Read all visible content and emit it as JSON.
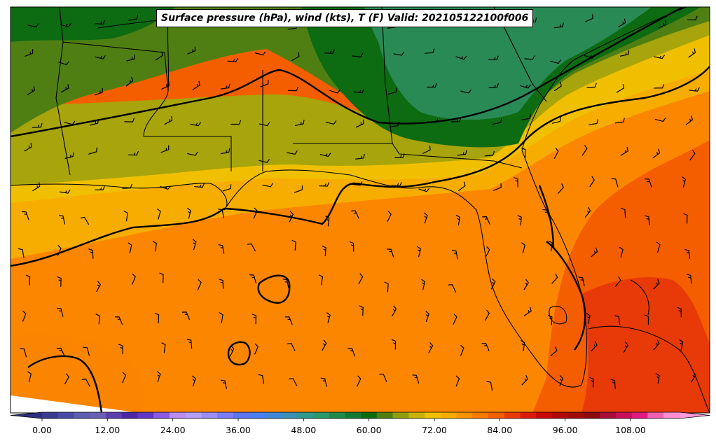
{
  "title": "Surface pressure (hPa), wind (kts), T (F) Valid: 202105122100f006",
  "colorbar": {
    "ticks": [
      {
        "value": 0,
        "label": "0.00"
      },
      {
        "value": 12,
        "label": "12.00"
      },
      {
        "value": 24,
        "label": "24.00"
      },
      {
        "value": 36,
        "label": "36.00"
      },
      {
        "value": 48,
        "label": "48.00"
      },
      {
        "value": 60,
        "label": "60.00"
      },
      {
        "value": 72,
        "label": "72.00"
      },
      {
        "value": 84,
        "label": "84.00"
      },
      {
        "value": 96,
        "label": "96.00"
      },
      {
        "value": 108,
        "label": "108.00"
      }
    ],
    "range": [
      -3,
      122
    ],
    "step": 3,
    "extend": "both",
    "colors": [
      "#3b3b8f",
      "#4a4aa5",
      "#5c5cb0",
      "#6a5fb5",
      "#5b3fb0",
      "#4d27a8",
      "#6236c4",
      "#8a5ae0",
      "#b98cf0",
      "#b49ef5",
      "#9c8cf5",
      "#7a7cf5",
      "#5b74f0",
      "#4a7ef0",
      "#3f86d8",
      "#3a8fb5",
      "#2f9a8a",
      "#2a9a6a",
      "#1f8a4a",
      "#137a33",
      "#0d6b12",
      "#4f7f12",
      "#8f9e0f",
      "#c9b10a",
      "#f0c000",
      "#f7ad00",
      "#fb9400",
      "#fc7a00",
      "#f55e00",
      "#ea3a0a",
      "#dd1a0a",
      "#c80808",
      "#b30808",
      "#a00a0a",
      "#8c0a10",
      "#a80c38",
      "#c8105a",
      "#e01a80",
      "#f060b0",
      "#ff8cd0"
    ],
    "over_color": "#ff9ad8",
    "under_color": "#2e2e80"
  },
  "legend_colors": {
    "water_band_hot": "#e83a08",
    "land_green_dark": "#0d6b12",
    "land_green": "#4f7f12",
    "land_olive": "#a8a40c",
    "land_yellow": "#f0c000",
    "warm_orange": "#f7ad00",
    "orange": "#fc8600",
    "deep_orange": "#f55e00",
    "teal": "#2f9a6a"
  },
  "pressure_contours": [
    "isobar-1",
    "isobar-2",
    "isobar-3",
    "isobar-4",
    "isobar-low-1",
    "isobar-low-2",
    "isobar-low-3"
  ]
}
